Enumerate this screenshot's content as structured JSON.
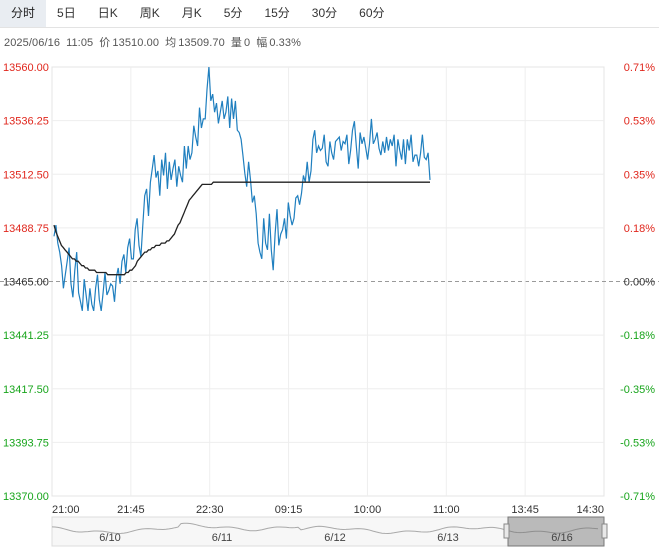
{
  "tabs": [
    {
      "label": "分时",
      "active": true
    },
    {
      "label": "5日"
    },
    {
      "label": "日K"
    },
    {
      "label": "周K"
    },
    {
      "label": "月K"
    },
    {
      "label": "5分"
    },
    {
      "label": "15分"
    },
    {
      "label": "30分"
    },
    {
      "label": "60分"
    }
  ],
  "info": {
    "date": "2025/06/16",
    "time": "11:05",
    "price_label": "价",
    "price": "13510.00",
    "avg_label": "均",
    "avg": "13509.70",
    "volume_label": "量",
    "volume": "0",
    "change_label": "幅",
    "change": "0.33%"
  },
  "colors": {
    "price_line": "#1f7fbf",
    "avg_line": "#222222",
    "up": "#e0271d",
    "down": "#18a51c",
    "neutral": "#333333"
  },
  "chart_data": {
    "type": "line",
    "x_ticks": [
      "21:00",
      "21:45",
      "22:30",
      "09:15",
      "10:00",
      "11:00",
      "13:45",
      "14:30"
    ],
    "y_ticks": [
      "13560.00",
      "13536.25",
      "13512.50",
      "13488.75",
      "13465.00",
      "13441.25",
      "13417.50",
      "13393.75",
      "13370.00"
    ],
    "pct_ticks": [
      "0.71%",
      "0.53%",
      "0.35%",
      "0.18%",
      "0.00%",
      "-0.18%",
      "-0.35%",
      "-0.53%",
      "-0.71%"
    ],
    "ylim": [
      13370,
      13560
    ],
    "prev_close": 13465,
    "series": [
      {
        "role": "price",
        "values": [
          13485,
          13490,
          13482,
          13478,
          13472,
          13462,
          13468,
          13474,
          13480,
          13464,
          13458,
          13470,
          13478,
          13460,
          13456,
          13452,
          13466,
          13459,
          13452,
          13462,
          13455,
          13452,
          13462,
          13468,
          13457,
          13452,
          13460,
          13469,
          13459,
          13461,
          13464,
          13463,
          13456,
          13467,
          13471,
          13464,
          13474,
          13477,
          13469,
          13480,
          13484,
          13475,
          13475,
          13488,
          13493,
          13481,
          13476,
          13490,
          13503,
          13506,
          13494,
          13509,
          13515,
          13521,
          13511,
          13514,
          13503,
          13519,
          13512,
          13522,
          13506,
          13518,
          13510,
          13515,
          13519,
          13507,
          13516,
          13512,
          13509,
          13525,
          13515,
          13525,
          13519,
          13522,
          13534,
          13529,
          13525,
          13542,
          13533,
          13537,
          13537,
          13550,
          13560,
          13545,
          13548,
          13540,
          13544,
          13535,
          13540,
          13545,
          13537,
          13540,
          13547,
          13533,
          13546,
          13537,
          13545,
          13532,
          13531,
          13528,
          13521,
          13513,
          13507,
          13518,
          13510,
          13500,
          13503,
          13495,
          13482,
          13478,
          13475,
          13493,
          13482,
          13479,
          13495,
          13479,
          13470,
          13486,
          13497,
          13481,
          13486,
          13488,
          13493,
          13484,
          13500,
          13494,
          13490,
          13493,
          13502,
          13503,
          13499,
          13504,
          13512,
          13509,
          13518,
          13509,
          13514,
          13528,
          13532,
          13522,
          13525,
          13523,
          13524,
          13530,
          13518,
          13516,
          13527,
          13522,
          13519,
          13527,
          13528,
          13529,
          13523,
          13527,
          13526,
          13530,
          13517,
          13523,
          13532,
          13536,
          13525,
          13515,
          13531,
          13526,
          13529,
          13524,
          13519,
          13526,
          13537,
          13526,
          13528,
          13531,
          13524,
          13521,
          13527,
          13522,
          13529,
          13523,
          13528,
          13525,
          13530,
          13516,
          13528,
          13523,
          13519,
          13528,
          13517,
          13528,
          13523,
          13530,
          13518,
          13521,
          13521,
          13516,
          13522,
          13530,
          13520,
          13519,
          13522,
          13510
        ]
      },
      {
        "role": "average",
        "values": [
          13490,
          13487,
          13485,
          13483,
          13481,
          13480,
          13479,
          13478,
          13477,
          13476,
          13475,
          13475,
          13474,
          13474,
          13473,
          13472,
          13472,
          13471,
          13471,
          13470,
          13470,
          13470,
          13470,
          13469,
          13469,
          13469,
          13469,
          13469,
          13469,
          13468,
          13468,
          13468,
          13468,
          13468,
          13468,
          13468,
          13468,
          13468,
          13468,
          13469,
          13469,
          13470,
          13470,
          13471,
          13472,
          13474,
          13475,
          13476,
          13477,
          13478,
          13478,
          13479,
          13479,
          13480,
          13480,
          13481,
          13481,
          13481,
          13482,
          13482,
          13482,
          13483,
          13483,
          13484,
          13485,
          13486,
          13488,
          13490,
          13491,
          13493,
          13495,
          13497,
          13499,
          13501,
          13502,
          13503,
          13504,
          13505,
          13506,
          13507,
          13508,
          13508,
          13508,
          13508,
          13508,
          13508,
          13509,
          13509,
          13509,
          13509,
          13509,
          13509,
          13509,
          13509,
          13509,
          13509,
          13509,
          13509,
          13509,
          13509,
          13509,
          13509,
          13509,
          13509,
          13509,
          13509,
          13509,
          13509,
          13509,
          13509,
          13509,
          13509,
          13509,
          13509,
          13509,
          13509,
          13509,
          13509,
          13509,
          13509,
          13509,
          13509,
          13509,
          13509,
          13509,
          13509,
          13509,
          13509,
          13509,
          13509,
          13509,
          13509,
          13509,
          13509,
          13509,
          13509,
          13509,
          13509,
          13509,
          13509,
          13509,
          13509,
          13509,
          13509,
          13509,
          13509,
          13509,
          13509,
          13509,
          13509,
          13509,
          13509,
          13509,
          13509,
          13509,
          13509,
          13509,
          13509,
          13509,
          13509,
          13509,
          13509,
          13509,
          13509,
          13509,
          13509,
          13509,
          13509,
          13509,
          13509,
          13509,
          13509,
          13509,
          13509,
          13509,
          13509,
          13509,
          13509,
          13509,
          13509,
          13509,
          13509,
          13509,
          13509,
          13509,
          13509,
          13509,
          13509,
          13509,
          13509,
          13509,
          13509,
          13509,
          13509,
          13509,
          13509,
          13509,
          13509,
          13509,
          13509,
          13509,
          13509,
          13509,
          13509
        ]
      }
    ],
    "grid": true
  },
  "navigator": {
    "date_labels": [
      "6/10",
      "6/11",
      "6/12",
      "6/13",
      "6/16"
    ]
  }
}
